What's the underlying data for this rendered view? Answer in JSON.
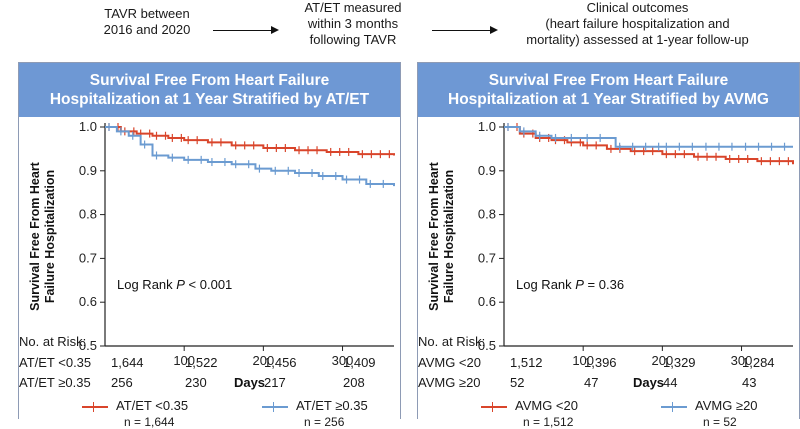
{
  "flow": {
    "step1": "TAVR between\n2016 and 2020",
    "step2": "AT/ET measured\nwithin 3 months\nfollowing TAVR",
    "step3": "Clinical outcomes\n(heart failure hospitalization and\nmortality) assessed at 1-year follow-up"
  },
  "colors": {
    "header_bg": "#6e98d4",
    "series_red": "#d9452b",
    "series_blue": "#6b9bd1"
  },
  "chart_data": [
    {
      "type": "line",
      "title": "Survival Free From Heart Failure Hospitalization at 1 Year Stratified by AT/ET",
      "title_lines": [
        "Survival Free From Heart Failure",
        "Hospitalization at 1 Year Stratified by AT/ET"
      ],
      "ylabel": "Survival Free From Heart Failure Hospitalization",
      "ylabel_lines": [
        "Survival Free From Heart",
        "Failure Hospitalization"
      ],
      "xlabel": "Days",
      "xlim": [
        0,
        365
      ],
      "ylim": [
        0.5,
        1.0
      ],
      "xticks": [
        100,
        200,
        300
      ],
      "yticks": [
        "0.5",
        "0.6",
        "0.7",
        "0.8",
        "0.9",
        "1.0"
      ],
      "annotation": "Log Rank P < 0.001",
      "annotation_parts": [
        "Log Rank ",
        "P",
        " < 0.001"
      ],
      "series": [
        {
          "name": "AT/ET <0.35",
          "color": "#d9452b",
          "x": [
            0,
            20,
            40,
            60,
            80,
            100,
            130,
            160,
            200,
            240,
            280,
            320,
            365
          ],
          "y": [
            1.0,
            0.99,
            0.985,
            0.98,
            0.975,
            0.97,
            0.965,
            0.958,
            0.952,
            0.947,
            0.943,
            0.938,
            0.935
          ],
          "legend_n": "n = 1,644"
        },
        {
          "name": "AT/ET ≥0.35",
          "color": "#6b9bd1",
          "x": [
            0,
            15,
            30,
            45,
            60,
            80,
            100,
            130,
            160,
            190,
            210,
            240,
            270,
            300,
            330,
            365
          ],
          "y": [
            1.0,
            0.99,
            0.98,
            0.96,
            0.935,
            0.93,
            0.925,
            0.92,
            0.915,
            0.905,
            0.9,
            0.895,
            0.888,
            0.88,
            0.87,
            0.865
          ],
          "legend_n": "n = 256"
        }
      ],
      "risk_table": {
        "title": "No. at Risk:",
        "rows": [
          {
            "label": "AT/ET <0.35",
            "values": [
              "1,644",
              "1,522",
              "1,456",
              "1,409"
            ]
          },
          {
            "label": "AT/ET ≥0.35",
            "values": [
              "256",
              "230",
              "217",
              "208"
            ]
          }
        ]
      }
    },
    {
      "type": "line",
      "title": "Survival Free From Heart Failure Hospitalization at 1 Year Stratified by AVMG",
      "title_lines": [
        "Survival Free From Heart Failure",
        "Hospitalization at 1 Year Stratified by AVMG"
      ],
      "ylabel": "Survival Free From Heart Failure Hospitalization",
      "ylabel_lines": [
        "Survival Free From Heart",
        "Failure Hospitalization"
      ],
      "xlabel": "Days",
      "xlim": [
        0,
        365
      ],
      "ylim": [
        0.5,
        1.0
      ],
      "xticks": [
        100,
        200,
        300
      ],
      "yticks": [
        "0.5",
        "0.6",
        "0.7",
        "0.8",
        "0.9",
        "1.0"
      ],
      "annotation": "Log Rank P = 0.36",
      "annotation_parts": [
        "Log Rank ",
        "P",
        " = 0.36"
      ],
      "series": [
        {
          "name": "AVMG <20",
          "color": "#d9452b",
          "x": [
            0,
            20,
            40,
            60,
            80,
            100,
            130,
            160,
            200,
            240,
            280,
            320,
            365
          ],
          "y": [
            1.0,
            0.985,
            0.975,
            0.97,
            0.965,
            0.958,
            0.95,
            0.945,
            0.938,
            0.932,
            0.927,
            0.922,
            0.915
          ],
          "legend_n": "n = 1,512"
        },
        {
          "name": "AVMG ≥20",
          "color": "#6b9bd1",
          "x": [
            0,
            20,
            40,
            60,
            80,
            100,
            140,
            141,
            200,
            250,
            300,
            365
          ],
          "y": [
            1.0,
            0.99,
            0.98,
            0.975,
            0.975,
            0.975,
            0.975,
            0.955,
            0.955,
            0.955,
            0.955,
            0.955
          ],
          "legend_n": "n = 52"
        }
      ],
      "risk_table": {
        "title": "No. at Risk:",
        "rows": [
          {
            "label": "AVMG <20",
            "values": [
              "1,512",
              "1,396",
              "1,329",
              "1,284"
            ]
          },
          {
            "label": "AVMG ≥20",
            "values": [
              "52",
              "47",
              "44",
              "43"
            ]
          }
        ]
      }
    }
  ]
}
